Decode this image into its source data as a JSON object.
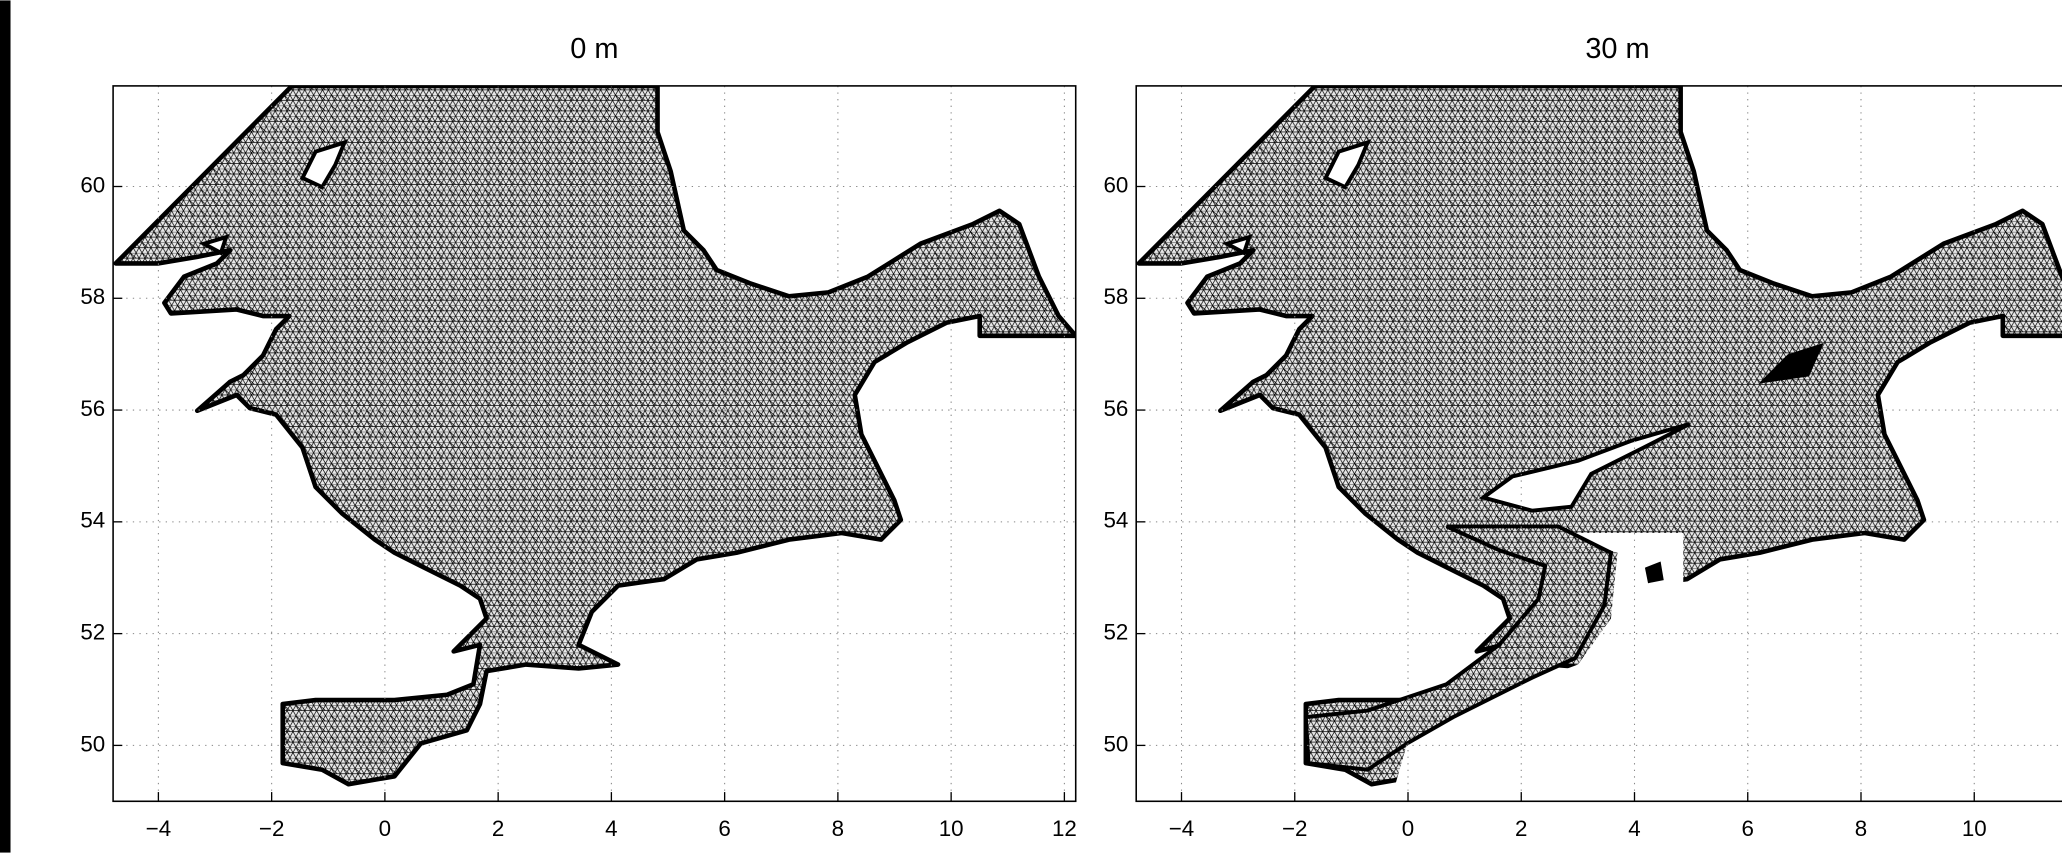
{
  "chart_data": [
    {
      "type": "map",
      "title": "0 m",
      "xlim": [
        -4.8,
        12.2
      ],
      "xticks": [
        {
          "value": -4,
          "label": "−4"
        },
        {
          "value": -2,
          "label": "−2"
        },
        0,
        2,
        4,
        6,
        8,
        10,
        12
      ],
      "ylim": [
        49,
        61.8
      ],
      "yticks": [
        50,
        52,
        54,
        56,
        58,
        60
      ],
      "grid": true
    },
    {
      "type": "map",
      "title": "30 m",
      "xlim": [
        -4.8,
        12.2
      ],
      "xticks": [
        {
          "value": -4,
          "label": "−4"
        },
        {
          "value": -2,
          "label": "−2"
        },
        0,
        2,
        4,
        6,
        8,
        10
      ],
      "ylim": [
        49,
        61.8
      ],
      "yticks": [
        50,
        52,
        54,
        56,
        58,
        60
      ],
      "grid": true
    }
  ]
}
